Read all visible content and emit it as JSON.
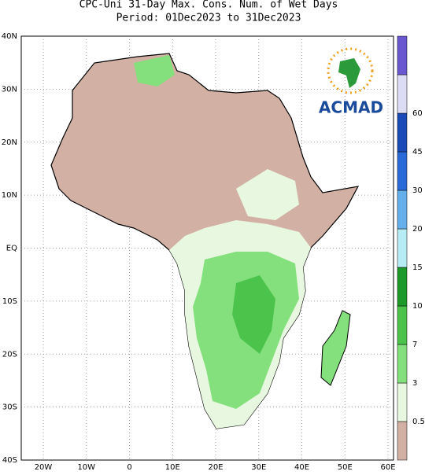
{
  "title": [
    "CPC-Uni 31-Day Max. Cons. Num. of Wet Days",
    "Period: 01Dec2023 to 31Dec2023"
  ],
  "lat_labels": [
    "40N",
    "30N",
    "20N",
    "10N",
    "EQ",
    "10S",
    "20S",
    "30S",
    "40S"
  ],
  "lon_labels": [
    "20W",
    "10W",
    "0",
    "10E",
    "20E",
    "30E",
    "40E",
    "50E",
    "60E"
  ],
  "colorbar": {
    "labels": [
      "0.5",
      "3",
      "7",
      "10",
      "15",
      "20",
      "30",
      "45",
      "60"
    ],
    "colors": [
      "#d2b0a4",
      "#e8f8e0",
      "#84e07c",
      "#4cc44c",
      "#1e9a2a",
      "#b8ecf4",
      "#64b0ec",
      "#2a6ad8",
      "#1a4ab8",
      "#dcdcf4",
      "#6a58d0"
    ]
  },
  "logo": "ACMAD"
}
